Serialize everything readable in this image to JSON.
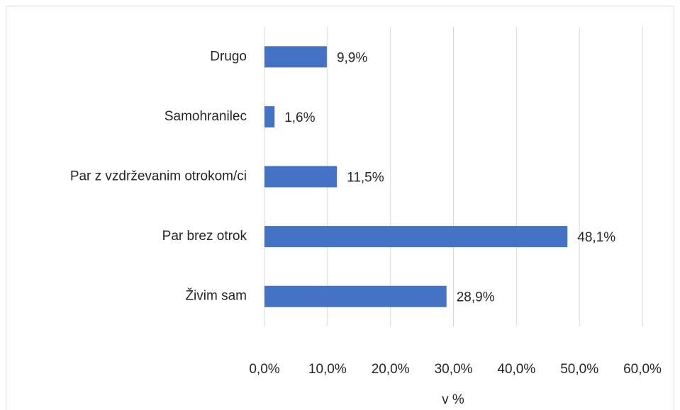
{
  "chart_data": {
    "type": "bar",
    "orientation": "horizontal",
    "categories": [
      "Drugo",
      "Samohranilec",
      "Par z vzdrževanim otrokom/ci",
      "Par brez otrok",
      "Živim sam"
    ],
    "values": [
      9.9,
      1.6,
      11.5,
      48.1,
      28.9
    ],
    "value_labels": [
      "9,9%",
      "1,6%",
      "11,5%",
      "48,1%",
      "28,9%"
    ],
    "color": "#4472c4",
    "x_label": "v %",
    "xlim": [
      0,
      60
    ],
    "xticks": [
      {
        "value": 0,
        "label": "0,0%"
      },
      {
        "value": 10,
        "label": "10,0%"
      },
      {
        "value": 20,
        "label": "20,0%"
      },
      {
        "value": 30,
        "label": "30,0%"
      },
      {
        "value": 40,
        "label": "40,0%"
      },
      {
        "value": 50,
        "label": "50,0%"
      },
      {
        "value": 60,
        "label": "60,0%"
      }
    ],
    "grid": true
  }
}
